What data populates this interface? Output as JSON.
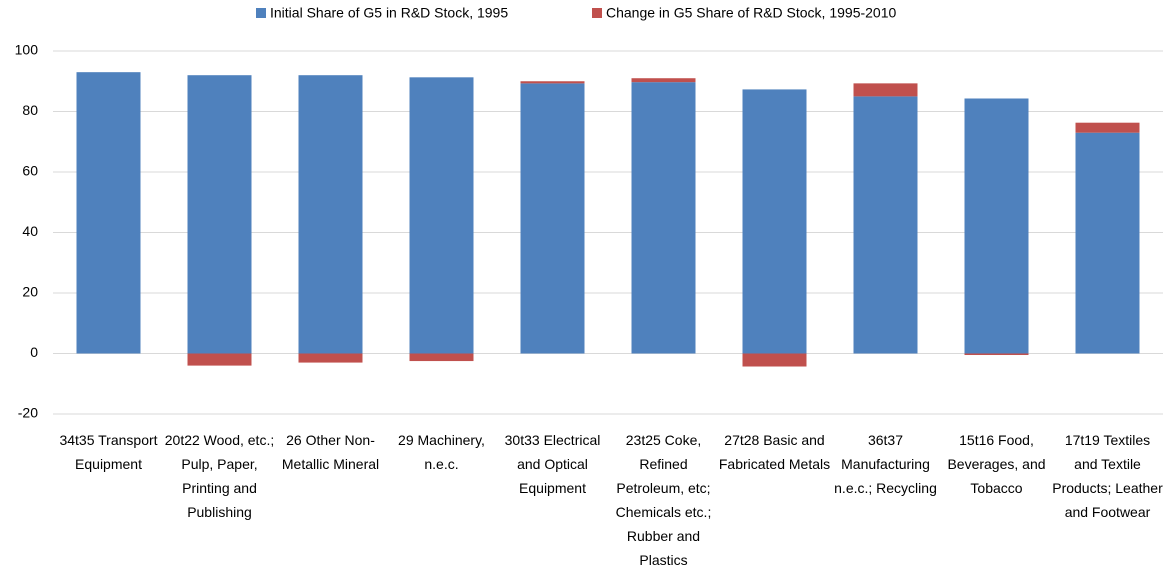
{
  "chart_data": {
    "type": "stacked_bar",
    "categories": [
      "34t35 Transport Equipment",
      "20t22 Wood, etc.; Pulp, Paper, Printing and Publishing",
      "26 Other Non-Metallic Mineral",
      "29 Machinery, n.e.c.",
      "30t33 Electrical and Optical Equipment",
      "23t25 Coke, Refined Petroleum, etc; Chemicals etc.; Rubber and Plastics",
      "27t28 Basic and Fabricated Metals",
      "36t37 Manufacturing n.e.c.; Recycling",
      "15t16 Food, Beverages, and Tobacco",
      "17t19 Textiles and Textile Products; Leather and Footwear"
    ],
    "series": [
      {
        "name": "Initial Share of G5 in R&D Stock, 1995",
        "color": "#4f81bd",
        "values": [
          93,
          92,
          92,
          91.3,
          89.3,
          89.7,
          87.3,
          85,
          84.3,
          73
        ]
      },
      {
        "name": "Change in G5 Share of R&D Stock, 1995-2010",
        "color": "#c0504d",
        "values": [
          0,
          -4,
          -3,
          -2.5,
          0.7,
          1.3,
          -4.3,
          4.3,
          -0.5,
          3.3
        ]
      }
    ],
    "ylim": [
      -20,
      100
    ],
    "yticks": [
      -20,
      0,
      20,
      40,
      60,
      80,
      100
    ],
    "grid": true,
    "legend": "top"
  }
}
